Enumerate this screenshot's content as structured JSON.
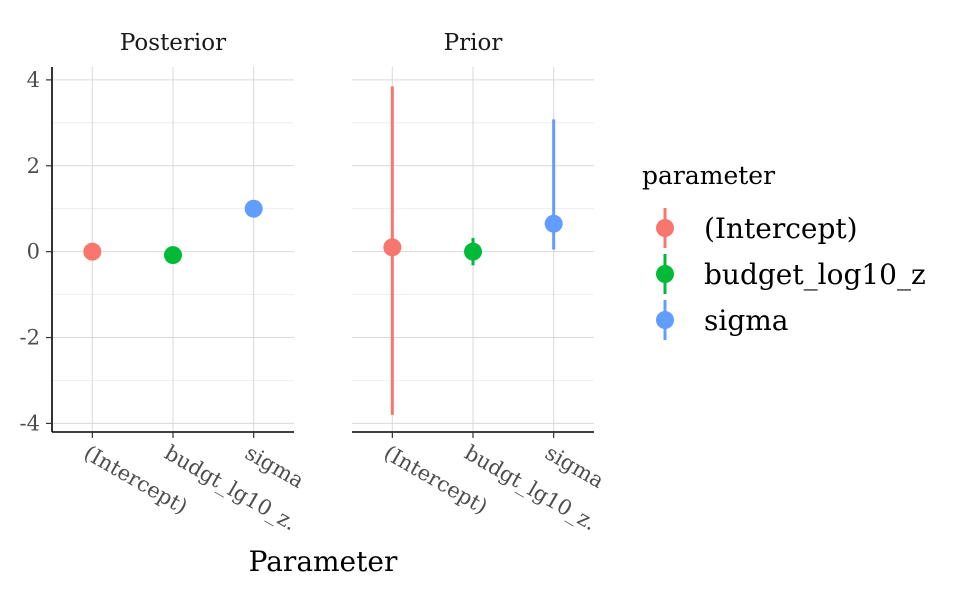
{
  "chart_data": {
    "type": "scatter",
    "subtype": "pointrange",
    "facets": [
      {
        "title": "Posterior",
        "points": [
          {
            "category": "(Intercept)",
            "tick_label": "(Intercept)",
            "parameter": "(Intercept)",
            "y": 0.0,
            "ymin": 0.0,
            "ymax": 0.0
          },
          {
            "category": "budget_log10_z",
            "tick_label": "budgt_lg10_z.",
            "parameter": "budget_log10_z",
            "y": -0.08,
            "ymin": -0.08,
            "ymax": -0.08
          },
          {
            "category": "sigma",
            "tick_label": "sigma",
            "parameter": "sigma",
            "y": 1.0,
            "ymin": 1.0,
            "ymax": 1.0
          }
        ]
      },
      {
        "title": "Prior",
        "points": [
          {
            "category": "(Intercept)",
            "tick_label": "(Intercept)",
            "parameter": "(Intercept)",
            "y": 0.1,
            "ymin": -3.8,
            "ymax": 3.85
          },
          {
            "category": "budget_log10_z",
            "tick_label": "budgt_lg10_z.",
            "parameter": "budget_log10_z",
            "y": 0.0,
            "ymin": -0.32,
            "ymax": 0.32
          },
          {
            "category": "sigma",
            "tick_label": "sigma",
            "parameter": "sigma",
            "y": 0.65,
            "ymin": 0.05,
            "ymax": 3.08
          }
        ]
      }
    ],
    "categories": [
      "(Intercept)",
      "budget_log10_z",
      "sigma"
    ],
    "y_ticks": [
      4,
      2,
      0,
      -2,
      -4
    ],
    "y_tick_labels": [
      "4",
      "2",
      "0",
      "-2",
      "-4"
    ],
    "ylim": [
      -4.2,
      4.3
    ],
    "xlabel": "Parameter",
    "ylabel": "",
    "grid": true,
    "legend": {
      "title": "parameter",
      "placement": "right",
      "entries": [
        {
          "label": "(Intercept)",
          "color": "#F8766D"
        },
        {
          "label": "budget_log10_z",
          "color": "#00BA38"
        },
        {
          "label": "sigma",
          "color": "#619CFF"
        }
      ]
    },
    "colors": {
      "(Intercept)": "#F8766D",
      "budget_log10_z": "#00BA38",
      "sigma": "#619CFF"
    }
  }
}
